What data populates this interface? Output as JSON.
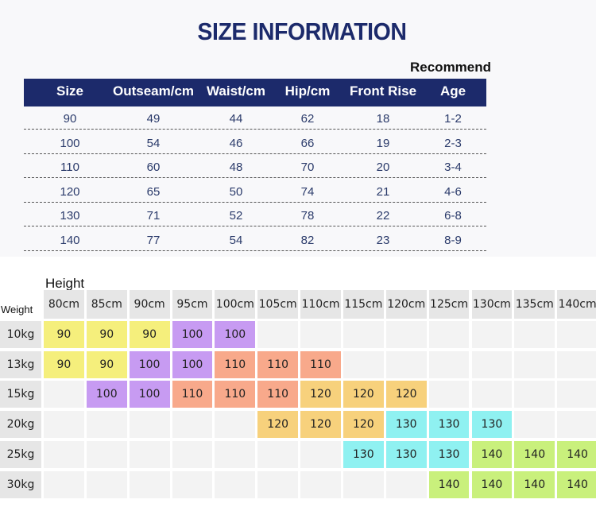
{
  "header": {
    "title": "SIZE INFORMATION",
    "recommend": "Recommend"
  },
  "size_table": {
    "columns": [
      "Size",
      "Outseam/cm",
      "Waist/cm",
      "Hip/cm",
      "Front Rise",
      "Age"
    ],
    "rows": [
      [
        "90",
        "49",
        "44",
        "62",
        "18",
        "1-2"
      ],
      [
        "100",
        "54",
        "46",
        "66",
        "19",
        "2-3"
      ],
      [
        "110",
        "60",
        "48",
        "70",
        "20",
        "3-4"
      ],
      [
        "120",
        "65",
        "50",
        "74",
        "21",
        "4-6"
      ],
      [
        "130",
        "71",
        "52",
        "78",
        "22",
        "6-8"
      ],
      [
        "140",
        "77",
        "54",
        "82",
        "23",
        "8-9"
      ]
    ]
  },
  "fit_grid": {
    "height_label": "Height",
    "weight_label": "Weight",
    "heights": [
      "80cm",
      "85cm",
      "90cm",
      "95cm",
      "100cm",
      "105cm",
      "110cm",
      "115cm",
      "120cm",
      "125cm",
      "130cm",
      "135cm",
      "140cm"
    ],
    "rows": [
      {
        "weight": "10kg",
        "cells": [
          "90",
          "90",
          "90",
          "100",
          "100",
          null,
          null,
          null,
          null,
          null,
          null,
          null,
          null
        ]
      },
      {
        "weight": "13kg",
        "cells": [
          "90",
          "90",
          "100",
          "100",
          "110",
          "110",
          "110",
          null,
          null,
          null,
          null,
          null,
          null
        ]
      },
      {
        "weight": "15kg",
        "cells": [
          null,
          "100",
          "100",
          "110",
          "110",
          "110",
          "120",
          "120",
          "120",
          null,
          null,
          null,
          null
        ]
      },
      {
        "weight": "20kg",
        "cells": [
          null,
          null,
          null,
          null,
          null,
          "120",
          "120",
          "120",
          "130",
          "130",
          "130",
          null,
          null
        ]
      },
      {
        "weight": "25kg",
        "cells": [
          null,
          null,
          null,
          null,
          null,
          null,
          null,
          "130",
          "130",
          "130",
          "140",
          "140",
          "140"
        ]
      },
      {
        "weight": "30kg",
        "cells": [
          null,
          null,
          null,
          null,
          null,
          null,
          null,
          null,
          null,
          "140",
          "140",
          "140",
          "140"
        ]
      }
    ],
    "colors": {
      "90": "#f5ef7c",
      "100": "#c79bf2",
      "110": "#f8a98b",
      "120": "#f7d17c",
      "130": "#8ff1f1",
      "140": "#c9f07c"
    }
  }
}
